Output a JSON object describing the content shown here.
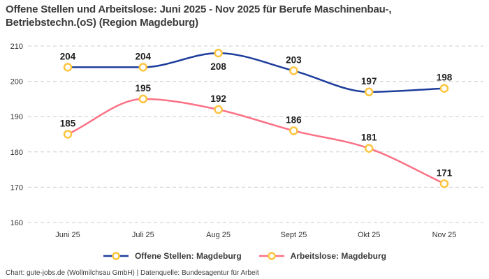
{
  "title": "Offene Stellen und Arbeitslose: Juni 2025 - Nov 2025 für Berufe Maschinenbau-,\nBetriebstechn.(oS) (Region Magdeburg)",
  "footer": "Chart: gute-jobs.de (Wollmilchsau GmbH) | Datenquelle: Bundesagentur für Arbeit",
  "colors": {
    "background": "#ffffff",
    "grid": "#cccccc",
    "axis_text": "#333333",
    "value_label_text": "#1f1f1f",
    "title_text": "#3b3b3b",
    "marker_stroke": "#fdc43f",
    "marker_fill": "#ffffff"
  },
  "chart_data": {
    "type": "line",
    "title": "Offene Stellen und Arbeitslose: Juni 2025 - Nov 2025 für Berufe Maschinenbau-, Betriebstechn.(oS) (Region Magdeburg)",
    "categories": [
      "Juni 25",
      "Juli 25",
      "Aug 25",
      "Sept 25",
      "Okt 25",
      "Nov 25"
    ],
    "series": [
      {
        "name": "Offene Stellen: Magdeburg",
        "color": "#1d3d9c",
        "values": [
          204,
          204,
          208,
          203,
          197,
          198
        ],
        "label_position": [
          "above",
          "above",
          "below",
          "above",
          "above",
          "above"
        ]
      },
      {
        "name": "Arbeitslose: Magdeburg",
        "color": "#fb7185",
        "values": [
          185,
          195,
          192,
          186,
          181,
          171
        ],
        "label_position": [
          "above",
          "above",
          "above",
          "above",
          "above",
          "above"
        ]
      }
    ],
    "xlabel": "",
    "ylabel": "",
    "ylim": [
      160,
      210
    ],
    "yticks": [
      160,
      170,
      180,
      190,
      200,
      210
    ],
    "grid": "horizontal-dashed",
    "legend_position": "bottom",
    "marker": "circle",
    "curve": "smooth"
  }
}
